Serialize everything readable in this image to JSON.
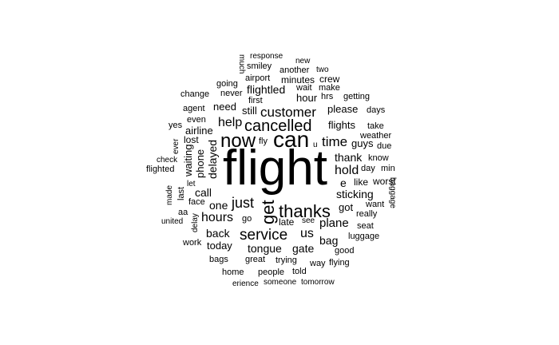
{
  "words": {
    "flight": "flight",
    "can": "can",
    "now": "now",
    "cancelled": "cancelled",
    "customer": "customer",
    "thanks": "thanks",
    "get": "get",
    "service": "service",
    "just": "just",
    "hours": "hours",
    "time": "time",
    "hold": "hold",
    "help": "help",
    "us": "us",
    "plane": "plane",
    "response": "response",
    "much": "much",
    "smiley": "smiley",
    "new": "new",
    "another": "another",
    "two": "two",
    "airport": "airport",
    "minutes": "minutes",
    "crew": "crew",
    "going": "going",
    "flightled": "flightled",
    "wait": "wait",
    "make": "make",
    "change": "change",
    "never": "never",
    "hrs": "hrs",
    "getting": "getting",
    "first": "first",
    "hour": "hour",
    "agent": "agent",
    "need": "need",
    "still": "still",
    "please": "please",
    "days": "days",
    "even": "even",
    "yes": "yes",
    "airline": "airline",
    "flights": "flights",
    "take": "take",
    "lost": "lost",
    "weather": "weather",
    "ever": "ever",
    "fly": "fly",
    "u": "u",
    "guys": "guys",
    "due": "due",
    "phone": "phone",
    "delayed": "delayed",
    "thank": "thank",
    "know": "know",
    "check": "check",
    "flighted": "flighted",
    "waiting": "waiting",
    "day": "day",
    "min": "min",
    "like": "like",
    "let": "let",
    "e": "e",
    "worst": "worst",
    "made": "made",
    "last": "last",
    "call": "call",
    "sticking": "sticking",
    "baggage": "baggage",
    "face": "face",
    "one": "one",
    "want": "want",
    "aa": "aa",
    "got": "got",
    "really": "really",
    "united": "united",
    "delay": "delay",
    "go": "go",
    "late": "late",
    "see": "see",
    "seat": "seat",
    "back": "back",
    "bag": "bag",
    "luggage": "luggage",
    "work": "work",
    "today": "today",
    "tongue": "tongue",
    "gate": "gate",
    "good": "good",
    "bags": "bags",
    "great": "great",
    "trying": "trying",
    "way": "way",
    "flying": "flying",
    "home": "home",
    "people": "people",
    "told": "told",
    "erience": "erience",
    "someone": "someone",
    "tomorrow": "tomorrow"
  }
}
